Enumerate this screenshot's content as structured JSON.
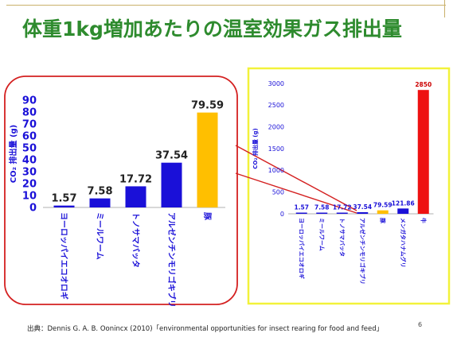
{
  "slide": {
    "title": "体重1kg増加あたりの温室効果ガス排出量",
    "footer": "出典：Dennis G. A. B. Oonincx (2010)「environmental opportunities for insect rearing for food and feed」",
    "page_number": "6",
    "colors": {
      "title": "#2e8b2e",
      "zoom_frame": "#d42020",
      "full_frame": "#f2f23a"
    }
  },
  "chart_data": [
    {
      "type": "bar",
      "ylabel": "CO₂ 排出量 (g)",
      "ylim": [
        0,
        90
      ],
      "yticks": [
        0,
        10,
        20,
        30,
        40,
        50,
        60,
        70,
        80,
        90
      ],
      "categories": [
        "ヨーロッパイエコオロギ",
        "ミールワーム",
        "トノサマバッタ",
        "アルゼンチンモリゴキブリ",
        "豚"
      ],
      "values": [
        1.57,
        7.58,
        17.72,
        37.54,
        79.59
      ],
      "value_labels": [
        "1.57",
        "7.58",
        "17.72",
        "37.54",
        "79.59"
      ],
      "colors": [
        "#1a10d8",
        "#1a10d8",
        "#1a10d8",
        "#1a10d8",
        "#ffbf00"
      ],
      "grid": false,
      "legend": "none"
    },
    {
      "type": "bar",
      "ylabel": "CO₂ 排出量 (g)",
      "ylim": [
        0,
        3000
      ],
      "yticks": [
        0,
        500,
        1000,
        1500,
        2000,
        2500,
        3000
      ],
      "categories": [
        "ヨーロッパイエコオロギ",
        "ミールワーム",
        "トノサマバッタ",
        "アルゼンチンモリゴキブリ",
        "豚",
        "メンガタハナムグリ",
        "牛"
      ],
      "values": [
        1.57,
        7.58,
        17.72,
        37.54,
        79.59,
        121.86,
        2850
      ],
      "value_labels": [
        "1.57",
        "7.58",
        "17.72",
        "37.54",
        "79.59",
        "121.86",
        "2850"
      ],
      "colors": [
        "#1a10d8",
        "#1a10d8",
        "#1a10d8",
        "#1a10d8",
        "#ffbf00",
        "#1a10d8",
        "#ee1111"
      ],
      "grid": false,
      "legend": "none"
    }
  ]
}
